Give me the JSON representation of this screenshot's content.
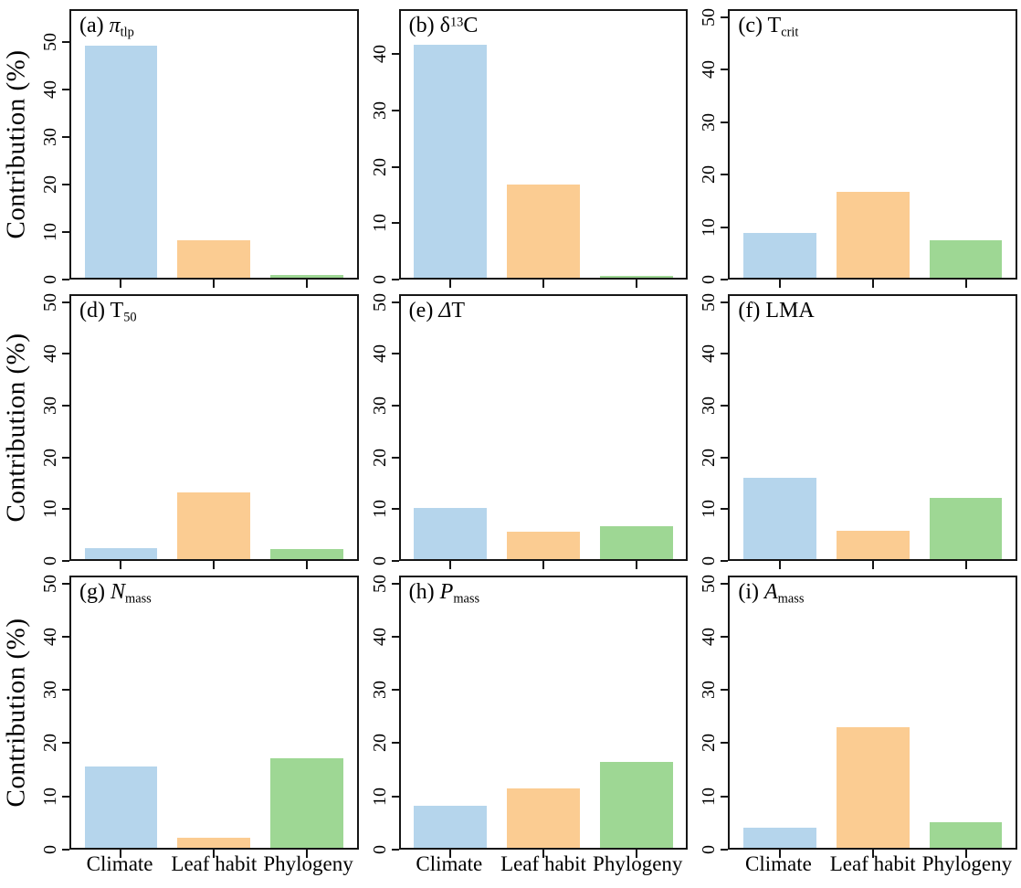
{
  "figure_title": "",
  "chart_data": {
    "type": "bar",
    "ylabel": "Contribution (%)",
    "categories": [
      "Climate",
      "Leaf habit",
      "Phylogeny"
    ],
    "bar_colors": [
      "#B5D5EC",
      "#FBCC92",
      "#9ED794"
    ],
    "axis_color": "#161616",
    "grid": "off",
    "legend": "none",
    "bar_centers_pct": [
      17.4,
      50,
      82.6
    ],
    "bar_width_pct": 25.5,
    "panels": [
      {
        "id": "a",
        "label_plain": "(a) π_tlp",
        "label_parts": [
          {
            "t": "(a) "
          },
          {
            "t": "π",
            "s": "i"
          },
          {
            "t": "tlp",
            "s": "sub"
          }
        ],
        "values": [
          49.6,
          8.0,
          0.6
        ],
        "yticks": [
          0,
          10,
          20,
          30,
          40,
          50
        ],
        "ymax_box": 57
      },
      {
        "id": "b",
        "label_plain": "(b) δ¹³C",
        "label_parts": [
          {
            "t": "(b) δ"
          },
          {
            "t": "13",
            "s": "sup"
          },
          {
            "t": "C"
          }
        ],
        "values": [
          42.0,
          16.7,
          0.3
        ],
        "yticks": [
          0,
          10,
          20,
          30,
          40
        ],
        "ymax_box": 48
      },
      {
        "id": "c",
        "label_plain": "(c) T_crit",
        "label_parts": [
          {
            "t": "(c) T"
          },
          {
            "t": "crit",
            "s": "sub"
          }
        ],
        "values": [
          8.6,
          16.6,
          7.2
        ],
        "yticks": [
          0,
          10,
          20,
          30,
          40,
          50
        ],
        "ymax_box": 51.5
      },
      {
        "id": "d",
        "label_plain": "(d) T_50",
        "label_parts": [
          {
            "t": "(d) T"
          },
          {
            "t": "50",
            "s": "sub"
          }
        ],
        "values": [
          2.1,
          13.0,
          1.9
        ],
        "yticks": [
          0,
          10,
          20,
          30,
          40,
          50
        ],
        "ymax_box": 51.5
      },
      {
        "id": "e",
        "label_plain": "(e) ΔT",
        "label_parts": [
          {
            "t": "(e) "
          },
          {
            "t": "Δ",
            "s": "i"
          },
          {
            "t": "T"
          }
        ],
        "values": [
          10.1,
          5.3,
          6.4
        ],
        "yticks": [
          0,
          10,
          20,
          30,
          40,
          50
        ],
        "ymax_box": 51.5
      },
      {
        "id": "f",
        "label_plain": "(f) LMA",
        "label_parts": [
          {
            "t": "(f) LMA"
          }
        ],
        "values": [
          16.0,
          5.6,
          11.9
        ],
        "yticks": [
          0,
          10,
          20,
          30,
          40,
          50
        ],
        "ymax_box": 51.5
      },
      {
        "id": "g",
        "label_plain": "(g) N_mass",
        "label_parts": [
          {
            "t": "(g) "
          },
          {
            "t": "N",
            "s": "i"
          },
          {
            "t": "mass",
            "s": "sub"
          }
        ],
        "values": [
          15.5,
          1.9,
          17.0
        ],
        "yticks": [
          0,
          10,
          20,
          30,
          40,
          50
        ],
        "ymax_box": 51.5
      },
      {
        "id": "h",
        "label_plain": "(h) P_mass",
        "label_parts": [
          {
            "t": "(h) "
          },
          {
            "t": "P",
            "s": "i"
          },
          {
            "t": "mass",
            "s": "sub"
          }
        ],
        "values": [
          8.0,
          11.3,
          16.3
        ],
        "yticks": [
          0,
          10,
          20,
          30,
          40,
          50
        ],
        "ymax_box": 51.5
      },
      {
        "id": "i",
        "label_plain": "(i) A_mass",
        "label_parts": [
          {
            "t": "(i) "
          },
          {
            "t": "A",
            "s": "i"
          },
          {
            "t": "mass",
            "s": "sub"
          }
        ],
        "values": [
          3.8,
          23.0,
          4.8
        ],
        "yticks": [
          0,
          10,
          20,
          30,
          40,
          50
        ],
        "ymax_box": 51.5
      }
    ],
    "rows": [
      [
        "a",
        "b",
        "c"
      ],
      [
        "d",
        "e",
        "f"
      ],
      [
        "g",
        "h",
        "i"
      ]
    ],
    "x_labels_shown_on": "bottom-row-only"
  }
}
